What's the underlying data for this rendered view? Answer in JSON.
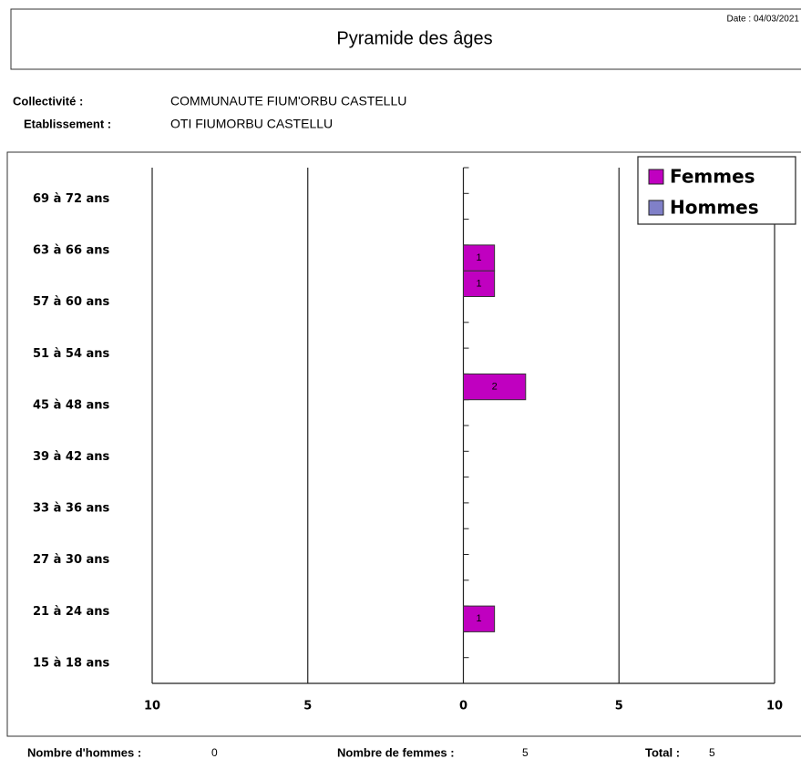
{
  "header": {
    "title": "Pyramide des âges",
    "date": "Date : 04/03/2021"
  },
  "info": {
    "collectivite_label": "Collectivité :",
    "collectivite": "COMMUNAUTE FIUM'ORBU CASTELLU",
    "etablissement_label": "Etablissement :",
    "etablissement": "OTI FIUMORBU CASTELLU"
  },
  "chart_data": {
    "type": "pyramid",
    "categories": [
      "15 à 18 ans",
      null,
      "21 à 24 ans",
      null,
      "27 à 30 ans",
      null,
      "33 à 36 ans",
      null,
      "39 à 42 ans",
      null,
      "45 à 48 ans",
      null,
      "51 à 54 ans",
      null,
      "57 à 60 ans",
      null,
      "63 à 66 ans",
      null,
      "69 à 72 ans",
      null
    ],
    "series": [
      {
        "name": "Femmes",
        "color": "#c000c0",
        "values": [
          0,
          0,
          1,
          0,
          0,
          0,
          0,
          0,
          0,
          0,
          0,
          2,
          0,
          0,
          0,
          1,
          1,
          0,
          0,
          0
        ]
      },
      {
        "name": "Hommes",
        "color": "#8080c8",
        "values": [
          0,
          0,
          0,
          0,
          0,
          0,
          0,
          0,
          0,
          0,
          0,
          0,
          0,
          0,
          0,
          0,
          0,
          0,
          0,
          0
        ]
      }
    ],
    "xlim": [
      -10,
      10
    ],
    "xticks": [
      {
        "value": -10,
        "label": "10"
      },
      {
        "value": -5,
        "label": "5"
      },
      0,
      5,
      10
    ],
    "grid": true,
    "legend": "top-right"
  },
  "footer": {
    "hommes_label": "Nombre d'hommes :",
    "hommes": "0",
    "femmes_label": "Nombre de femmes :",
    "femmes": "5",
    "total_label": "Total :",
    "total": "5"
  }
}
